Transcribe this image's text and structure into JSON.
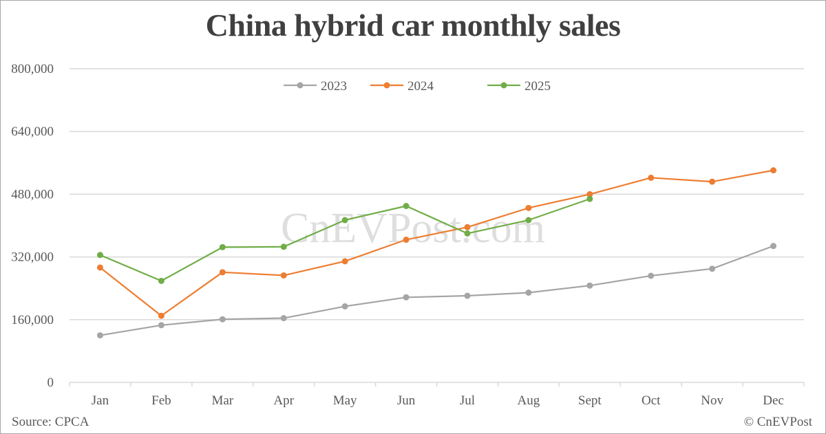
{
  "chart_data": {
    "type": "line",
    "title": "China hybrid car monthly sales",
    "xlabel": "",
    "ylabel": "",
    "categories": [
      "Jan",
      "Feb",
      "Mar",
      "Apr",
      "May",
      "Jun",
      "Jul",
      "Aug",
      "Sept",
      "Oct",
      "Nov",
      "Dec"
    ],
    "series": [
      {
        "name": "2023",
        "color": "#A5A5A5",
        "values": [
          120000,
          146000,
          161000,
          164000,
          194000,
          217000,
          221000,
          229000,
          247000,
          272000,
          290000,
          348000
        ]
      },
      {
        "name": "2024",
        "color": "#ED7D31",
        "values": [
          293000,
          170000,
          281000,
          273000,
          309000,
          364000,
          396000,
          445000,
          480000,
          522000,
          512000,
          541000
        ]
      },
      {
        "name": "2025",
        "color": "#70AD47",
        "values": [
          325000,
          259000,
          345000,
          346000,
          414000,
          450000,
          380000,
          414000,
          468000
        ]
      }
    ],
    "ylim": [
      0,
      800000
    ],
    "yticks": [
      0,
      160000,
      320000,
      480000,
      640000,
      800000
    ],
    "ytick_labels": [
      "0",
      "160,000",
      "320,000",
      "480,000",
      "640,000",
      "800,000"
    ],
    "grid": true,
    "legend_position": "top-center",
    "annotations": [
      "CnEVPost.com"
    ]
  },
  "header": {
    "title": "China hybrid car monthly sales"
  },
  "footer": {
    "source": "Source: CPCA",
    "copyright": "© CnEVPost"
  },
  "watermark": "CnEVPost.com"
}
